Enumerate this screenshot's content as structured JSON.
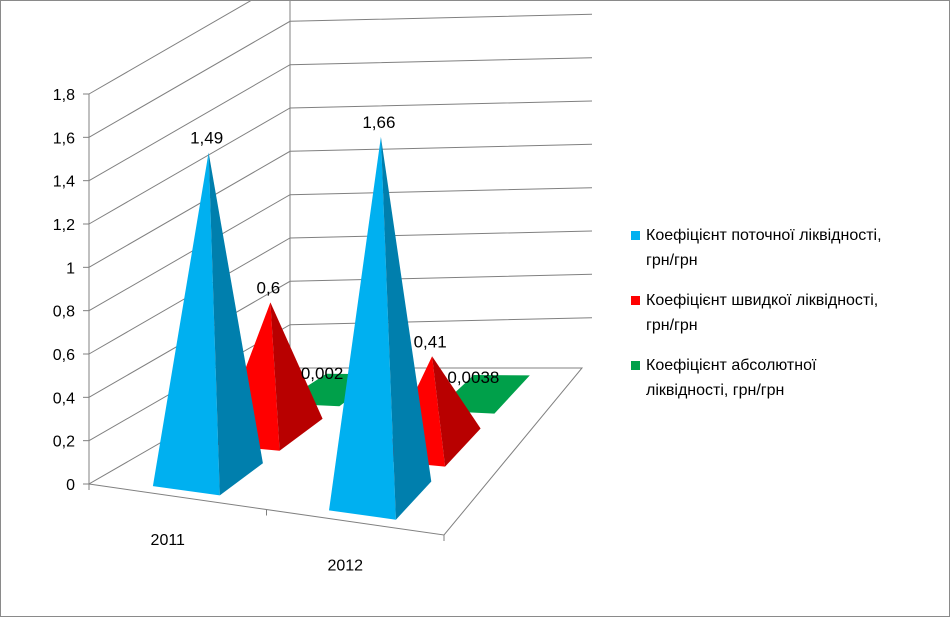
{
  "chart_data": {
    "type": "bar",
    "subtype": "3d-pyramid",
    "categories": [
      "2011",
      "2012"
    ],
    "series": [
      {
        "name": "Коефіцієнт поточної ліквідності,\nгрн/грн",
        "values": [
          1.49,
          1.66
        ],
        "labels": [
          "1,49",
          "1,66"
        ],
        "color": "#00B0F0"
      },
      {
        "name": "Коефіцієнт швидкої ліквідності,\nгрн/грн",
        "values": [
          0.6,
          0.41
        ],
        "labels": [
          "0,6",
          "0,41"
        ],
        "color": "#FF0000"
      },
      {
        "name": "Коефіцієнт абсолютної\nліквідності, грн/грн",
        "values": [
          0.002,
          0.0038
        ],
        "labels": [
          "0,002",
          "0,0038"
        ],
        "color": "#00A04A"
      }
    ],
    "y_ticks": [
      0,
      0.2,
      0.4,
      0.6,
      0.8,
      1,
      1.2,
      1.4,
      1.6,
      1.8
    ],
    "y_tick_labels": [
      "0",
      "0,2",
      "0,4",
      "0,6",
      "0,8",
      "1",
      "1,2",
      "1,4",
      "1,6",
      "1,8"
    ],
    "ylim": [
      0,
      1.8
    ],
    "grid": true,
    "legend": "right"
  }
}
